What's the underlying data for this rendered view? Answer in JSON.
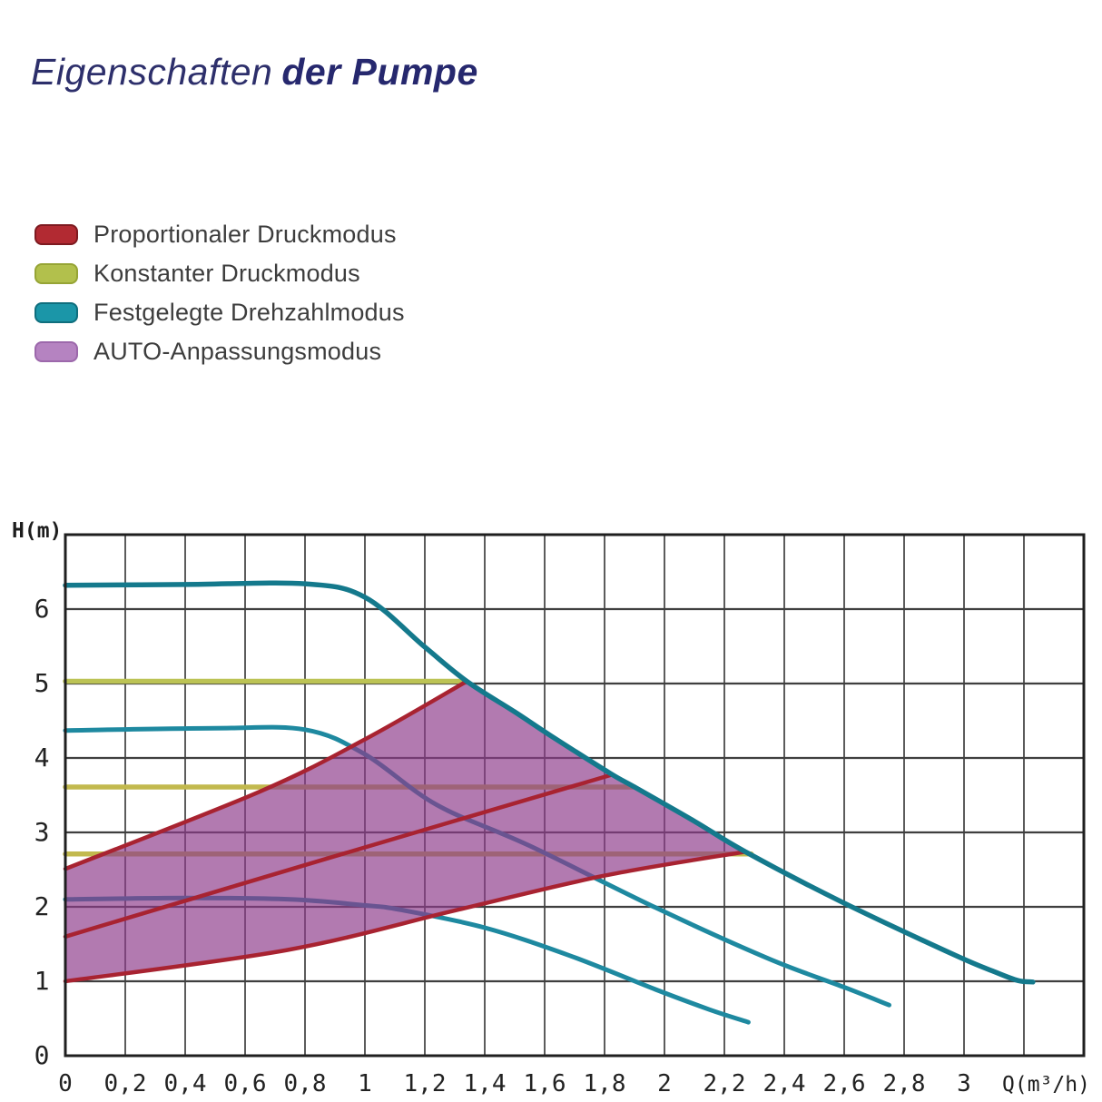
{
  "title": {
    "part1": "Eigenschaften",
    "part2": "der Pumpe"
  },
  "legend": {
    "items": [
      {
        "label": "Proportionaler Druckmodus",
        "color": "#b22a32",
        "border": "#7d1a20"
      },
      {
        "label": "Konstanter Druckmodus",
        "color": "#b2c04c",
        "border": "#96a435"
      },
      {
        "label": "Festgelegte Drehzahlmodus",
        "color": "#1b96a8",
        "border": "#0f6e7d"
      },
      {
        "label": "AUTO-Anpassungsmodus",
        "color": "#b583c1",
        "border": "#9c68ab"
      }
    ]
  },
  "chart_data": {
    "type": "line",
    "title": "",
    "xlabel": "Q(m³/h)",
    "ylabel": "H(m)",
    "xlim": [
      0,
      3.4
    ],
    "ylim": [
      0,
      7
    ],
    "grid": {
      "x_step": 0.2,
      "y_step": 1
    },
    "x_ticks": [
      [
        0,
        "0"
      ],
      [
        0.2,
        "0,2"
      ],
      [
        0.4,
        "0,4"
      ],
      [
        0.6,
        "0,6"
      ],
      [
        0.8,
        "0,8"
      ],
      [
        1,
        "1"
      ],
      [
        1.2,
        "1,2"
      ],
      [
        1.4,
        "1,4"
      ],
      [
        1.6,
        "1,6"
      ],
      [
        1.8,
        "1,8"
      ],
      [
        2,
        "2"
      ],
      [
        2.2,
        "2,2"
      ],
      [
        2.4,
        "2,4"
      ],
      [
        2.6,
        "2,6"
      ],
      [
        2.8,
        "2,8"
      ],
      [
        3,
        "3"
      ]
    ],
    "y_ticks": [
      [
        0,
        "0"
      ],
      [
        1,
        "1"
      ],
      [
        2,
        "2"
      ],
      [
        3,
        "3"
      ],
      [
        4,
        "4"
      ],
      [
        5,
        "5"
      ],
      [
        6,
        "6"
      ]
    ],
    "series": [
      {
        "name": "Konstanter Druckmodus Kurve 1",
        "mode": "constant_pressure",
        "color": "#bcc355",
        "points": [
          [
            0,
            5.03
          ],
          [
            1.32,
            5.03
          ]
        ]
      },
      {
        "name": "Konstanter Druckmodus Kurve 2",
        "mode": "constant_pressure",
        "color": "#c2b94e",
        "points": [
          [
            0,
            3.61
          ],
          [
            1.9,
            3.61
          ]
        ]
      },
      {
        "name": "Konstanter Druckmodus Kurve 3",
        "mode": "constant_pressure",
        "color": "#c2b94e",
        "points": [
          [
            0,
            2.71
          ],
          [
            2.29,
            2.71
          ]
        ]
      },
      {
        "name": "Festgelegte Drehzahl Kurve 2",
        "mode": "fixed_speed",
        "color": "#1e89a0",
        "points": [
          [
            0,
            4.37
          ],
          [
            0.5,
            4.4
          ],
          [
            0.8,
            4.38
          ],
          [
            1.0,
            4.05
          ],
          [
            1.24,
            3.37
          ],
          [
            1.55,
            2.82
          ],
          [
            1.97,
            1.99
          ],
          [
            2.35,
            1.3
          ],
          [
            2.6,
            0.92
          ],
          [
            2.75,
            0.68
          ]
        ]
      },
      {
        "name": "Festgelegte Drehzahl Kurve 3",
        "mode": "fixed_speed",
        "color": "#1e89a0",
        "points": [
          [
            0,
            2.1
          ],
          [
            0.4,
            2.12
          ],
          [
            0.75,
            2.1
          ],
          [
            1.0,
            2.02
          ],
          [
            1.12,
            1.96
          ],
          [
            1.4,
            1.72
          ],
          [
            1.68,
            1.35
          ],
          [
            1.97,
            0.89
          ],
          [
            2.15,
            0.62
          ],
          [
            2.28,
            0.45
          ]
        ]
      },
      {
        "name": "AUTO-Anpassungsbereich",
        "mode": "auto_area",
        "color": "#8e3b8a",
        "opacity": 0.68,
        "points": [
          [
            0,
            2.51
          ],
          [
            0.33,
            3.05
          ],
          [
            0.65,
            3.55
          ],
          [
            1.0,
            4.25
          ],
          [
            1.34,
            5.03
          ],
          [
            1.5,
            4.62
          ],
          [
            1.62,
            4.3
          ],
          [
            1.82,
            3.79
          ],
          [
            1.9,
            3.61
          ],
          [
            2.1,
            3.15
          ],
          [
            2.27,
            2.74
          ],
          [
            1.8,
            2.42
          ],
          [
            1.3,
            1.95
          ],
          [
            0.74,
            1.42
          ],
          [
            0.35,
            1.19
          ],
          [
            0,
            1.0
          ]
        ]
      },
      {
        "name": "Proportionaler Druck Kurve 1",
        "mode": "proportional_pressure",
        "color": "#a82331",
        "points": [
          [
            0,
            2.51
          ],
          [
            0.65,
            3.55
          ],
          [
            1.0,
            4.25
          ],
          [
            1.34,
            5.03
          ]
        ]
      },
      {
        "name": "Proportionaler Druck Kurve 2",
        "mode": "proportional_pressure",
        "color": "#a82331",
        "points": [
          [
            0,
            1.6
          ],
          [
            0.9,
            2.68
          ],
          [
            1.82,
            3.77
          ]
        ]
      },
      {
        "name": "Proportionaler Druck Kurve 3",
        "mode": "proportional_pressure",
        "color": "#a82331",
        "points": [
          [
            0,
            1.0
          ],
          [
            0.74,
            1.42
          ],
          [
            1.3,
            1.95
          ],
          [
            1.8,
            2.42
          ],
          [
            2.27,
            2.74
          ]
        ]
      },
      {
        "name": "Festgelegte Drehzahl Kurve 1",
        "mode": "fixed_speed_top",
        "color": "#14798c",
        "points": [
          [
            0,
            6.32
          ],
          [
            0.4,
            6.33
          ],
          [
            0.8,
            6.34
          ],
          [
            1.0,
            6.16
          ],
          [
            1.2,
            5.49
          ],
          [
            1.34,
            5.03
          ],
          [
            1.5,
            4.62
          ],
          [
            1.62,
            4.3
          ],
          [
            1.82,
            3.79
          ],
          [
            1.9,
            3.61
          ],
          [
            2.1,
            3.15
          ],
          [
            2.27,
            2.74
          ],
          [
            2.59,
            2.07
          ],
          [
            2.97,
            1.35
          ],
          [
            3.1,
            1.13
          ],
          [
            3.18,
            1.01
          ],
          [
            3.23,
            0.99
          ]
        ]
      }
    ]
  }
}
